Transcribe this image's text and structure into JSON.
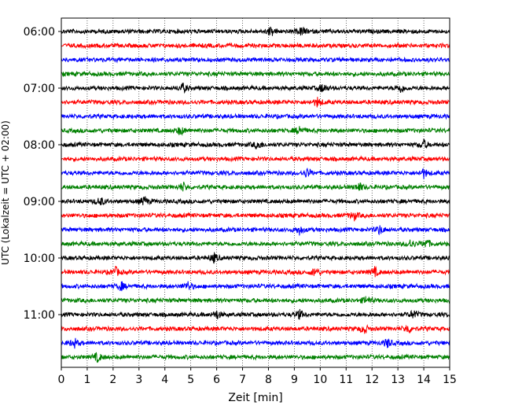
{
  "chart_data": {
    "type": "line",
    "subtype": "helicorder",
    "xlabel": "Zeit  [min]",
    "ylabel": "UTC (Lokalzeit = UTC + 02:00)",
    "xlim": [
      0,
      15
    ],
    "x_ticks": [
      "0",
      "1",
      "2",
      "3",
      "4",
      "5",
      "6",
      "7",
      "8",
      "9",
      "10",
      "11",
      "12",
      "13",
      "14",
      "15"
    ],
    "y_ticks": [
      "06:00",
      "07:00",
      "08:00",
      "09:00",
      "10:00",
      "11:00"
    ],
    "grid": "vertical dotted lines at every minute",
    "trace_minutes": 15,
    "traces_per_hour": 4,
    "color_cycle": [
      "#000000",
      "#ff0000",
      "#0000ff",
      "#008000"
    ],
    "traces": [
      {
        "start": "06:00",
        "events": [
          8.1,
          9.3
        ]
      },
      {
        "start": "06:15",
        "events": []
      },
      {
        "start": "06:30",
        "events": []
      },
      {
        "start": "06:45",
        "events": []
      },
      {
        "start": "07:00",
        "events": [
          4.7,
          10.1,
          13.1
        ]
      },
      {
        "start": "07:15",
        "events": [
          9.9
        ]
      },
      {
        "start": "07:30",
        "events": []
      },
      {
        "start": "07:45",
        "events": [
          4.6,
          9.2
        ]
      },
      {
        "start": "08:00",
        "events": [
          7.6,
          14.0
        ]
      },
      {
        "start": "08:15",
        "events": []
      },
      {
        "start": "08:30",
        "events": [
          9.5,
          14.0
        ]
      },
      {
        "start": "08:45",
        "events": [
          4.7,
          11.5
        ]
      },
      {
        "start": "09:00",
        "events": [
          1.5,
          3.2
        ]
      },
      {
        "start": "09:15",
        "events": [
          11.3
        ]
      },
      {
        "start": "09:30",
        "events": [
          9.2,
          12.3
        ]
      },
      {
        "start": "09:45",
        "events": [
          13.5,
          14.1
        ]
      },
      {
        "start": "10:00",
        "events": [
          5.9
        ]
      },
      {
        "start": "10:15",
        "events": [
          2.1,
          9.8,
          12.1
        ]
      },
      {
        "start": "10:30",
        "events": [
          2.3,
          4.9
        ]
      },
      {
        "start": "10:45",
        "events": [
          11.8
        ]
      },
      {
        "start": "11:00",
        "events": [
          6.0,
          9.2,
          13.6
        ]
      },
      {
        "start": "11:15",
        "events": [
          11.7,
          13.4
        ]
      },
      {
        "start": "11:30",
        "events": [
          0.5,
          12.6
        ]
      },
      {
        "start": "11:45",
        "events": [
          1.4
        ]
      }
    ]
  }
}
